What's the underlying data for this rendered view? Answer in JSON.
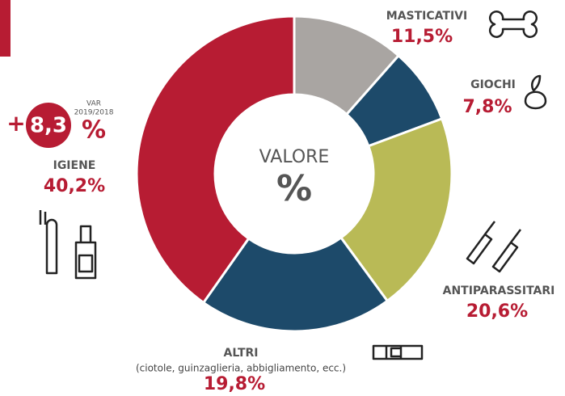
{
  "chart_data": {
    "type": "donut",
    "center_title": "VALORE",
    "center_unit": "%",
    "categories": [
      "MASTICATIVI",
      "GIOCHI",
      "ANTIPARASSITARI",
      "ALTRI",
      "IGIENE"
    ],
    "values": [
      11.5,
      7.8,
      20.6,
      19.8,
      40.2
    ],
    "value_labels": [
      "11,5%",
      "7,8%",
      "20,6%",
      "19,8%",
      "40,2%"
    ],
    "colors": [
      "#a9a5a2",
      "#1d4a6a",
      "#b9ba56",
      "#1d4a6a",
      "#b71c33"
    ],
    "altri_note": "(ciotole, guinzaglieria, abbigliamento, ecc.)",
    "variation": {
      "sign": "+",
      "value": "8,3",
      "unit": "%",
      "label": [
        "VAR",
        "2019/2018"
      ]
    }
  }
}
